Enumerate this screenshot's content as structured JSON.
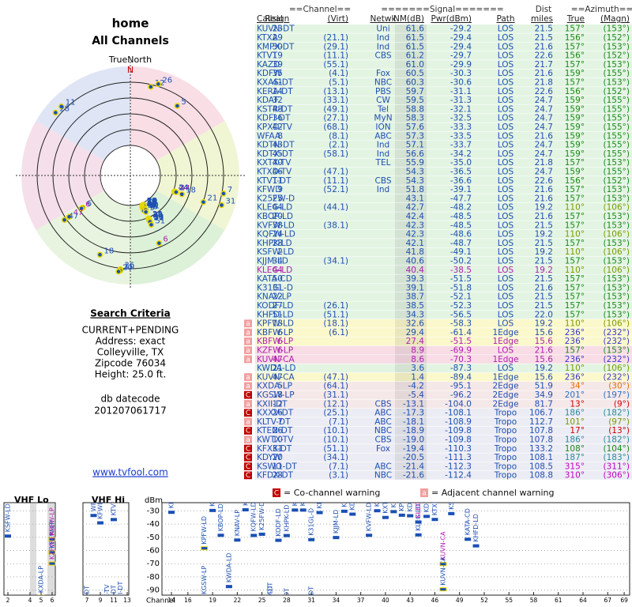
{
  "header": {
    "title": "home",
    "subtitle": "All Channels"
  },
  "polar": {
    "north_label": "TrueNorth",
    "n": "N"
  },
  "search": {
    "title": "Search Criteria",
    "lines": [
      "CURRENT+PENDING",
      "Address: exact",
      "Colleyville, TX",
      "Zipcode 76034",
      "Height: 25.0 ft."
    ],
    "datecode_label": "db datecode",
    "datecode": "201207061717",
    "link": "www.tvfool.com"
  },
  "table": {
    "group_headers": [
      "==Channel==",
      "=======Signal=======",
      "Dist",
      "==Azimuth=="
    ],
    "columns": [
      "Callsign",
      "Real",
      "(Virt)",
      "Netwk",
      "NM(dB)",
      "Pwr(dBm)",
      "Path",
      "miles",
      "True",
      "(Magn)"
    ],
    "rows": [
      {
        "cells": [
          "KUVN-DT",
          "23",
          null,
          "Uni",
          "61.6",
          "-29.2",
          "LOS",
          "21.5",
          "157°",
          "(153°)"
        ],
        "bg": "#e3f4e3",
        "color": "#1f4fb4",
        "az_color": "#1a8a1a"
      },
      {
        "cells": [
          "KTXA",
          "29",
          "(21.1)",
          "Ind",
          "61.5",
          "-29.4",
          "LOS",
          "21.5",
          "156°",
          "(152°)"
        ],
        "bg": "#e3f4e3",
        "color": "#1f4fb4",
        "az_color": "#1a8a1a"
      },
      {
        "cells": [
          "KMPX-DT",
          "30",
          "(29.1)",
          "Ind",
          "61.5",
          "-29.4",
          "LOS",
          "21.6",
          "157°",
          "(153°)"
        ],
        "bg": "#e3f4e3",
        "color": "#1f4fb4",
        "az_color": "#1a8a1a"
      },
      {
        "cells": [
          "KTVT",
          "19",
          "(11.1)",
          "CBS",
          "61.2",
          "-29.7",
          "LOS",
          "22.6",
          "156°",
          "(152°)"
        ],
        "bg": "#e3f4e3",
        "color": "#1f4fb4",
        "az_color": "#1a8a1a"
      },
      {
        "cells": [
          "KAZD",
          "39",
          "(55.1)",
          null,
          "61.0",
          "-29.9",
          "LOS",
          "21.7",
          "157°",
          "(153°)"
        ],
        "bg": "#e3f4e3",
        "color": "#1f4fb4",
        "az_color": "#1a8a1a"
      },
      {
        "cells": [
          "KDFW",
          "35",
          "(4.1)",
          "Fox",
          "60.5",
          "-30.3",
          "LOS",
          "21.6",
          "159°",
          "(155°)"
        ],
        "bg": "#e3f4e3",
        "color": "#1f4fb4",
        "az_color": "#1a8a1a"
      },
      {
        "cells": [
          "KXAS-DT",
          "41",
          "(5.1)",
          "NBC",
          "60.3",
          "-30.6",
          "LOS",
          "21.8",
          "157°",
          "(153°)"
        ],
        "bg": "#e3f4e3",
        "color": "#1f4fb4",
        "az_color": "#1a8a1a"
      },
      {
        "cells": [
          "KERA-DT",
          "14",
          "(13.1)",
          "PBS",
          "59.7",
          "-31.1",
          "LOS",
          "22.6",
          "156°",
          "(152°)"
        ],
        "bg": "#e3f4e3",
        "color": "#1f4fb4",
        "az_color": "#1a8a1a"
      },
      {
        "cells": [
          "KDAF",
          "32",
          "(33.1)",
          "CW",
          "59.5",
          "-31.3",
          "LOS",
          "24.7",
          "159°",
          "(155°)"
        ],
        "bg": "#e3f4e3",
        "color": "#1f4fb4",
        "az_color": "#1a8a1a"
      },
      {
        "cells": [
          "KSTR-DT",
          "48",
          "(49.1)",
          "Tel",
          "58.8",
          "-32.1",
          "LOS",
          "24.7",
          "159°",
          "(155°)"
        ],
        "bg": "#e3f4e3",
        "color": "#1f4fb4",
        "az_color": "#1a8a1a"
      },
      {
        "cells": [
          "KDFI-DT",
          "36",
          "(27.1)",
          "MyN",
          "58.3",
          "-32.5",
          "LOS",
          "24.7",
          "159°",
          "(155°)"
        ],
        "bg": "#e3f4e3",
        "color": "#1f4fb4",
        "az_color": "#1a8a1a"
      },
      {
        "cells": [
          "KPXD-TV",
          "42",
          "(68.1)",
          "ION",
          "57.6",
          "-33.3",
          "LOS",
          "24.7",
          "159°",
          "(155°)"
        ],
        "bg": "#e3f4e3",
        "color": "#1f4fb4",
        "az_color": "#1a8a1a"
      },
      {
        "cells": [
          "WFAA",
          "8",
          "(8.1)",
          "ABC",
          "57.3",
          "-33.5",
          "LOS",
          "21.6",
          "159°",
          "(155°)"
        ],
        "bg": "#e3f4e3",
        "color": "#1f4fb4",
        "az_color": "#1a8a1a"
      },
      {
        "cells": [
          "KDTN-DT",
          "43",
          "(2.1)",
          "Ind",
          "57.1",
          "-33.7",
          "LOS",
          "24.7",
          "159°",
          "(155°)"
        ],
        "bg": "#e3f4e3",
        "color": "#1f4fb4",
        "az_color": "#1a8a1a"
      },
      {
        "cells": [
          "KDTX-DT",
          "45",
          "(58.1)",
          "Ind",
          "56.6",
          "-34.2",
          "LOS",
          "24.7",
          "159°",
          "(155°)"
        ],
        "bg": "#e3f4e3",
        "color": "#1f4fb4",
        "az_color": "#1a8a1a"
      },
      {
        "cells": [
          "KXTX-TV",
          "40",
          null,
          "TEL",
          "55.9",
          "-35.0",
          "LOS",
          "21.8",
          "157°",
          "(153°)"
        ],
        "bg": "#e3f4e3",
        "color": "#1f4fb4",
        "az_color": "#1a8a1a"
      },
      {
        "cells": [
          "KTXD-TV",
          "46",
          "(47.1)",
          null,
          "54.3",
          "-36.5",
          "LOS",
          "24.7",
          "159°",
          "(155°)"
        ],
        "bg": "#e3f4e3",
        "color": "#1f4fb4",
        "az_color": "#1a8a1a"
      },
      {
        "cells": [
          "KTVT-DT",
          "11",
          "(11.1)",
          "CBS",
          "54.3",
          "-36.6",
          "LOS",
          "22.6",
          "156°",
          "(152°)"
        ],
        "bg": "#e3f4e3",
        "color": "#1f4fb4",
        "az_color": "#1a8a1a"
      },
      {
        "cells": [
          "KFWD",
          "9",
          "(52.1)",
          "Ind",
          "51.8",
          "-39.1",
          "LOS",
          "21.6",
          "157°",
          "(153°)"
        ],
        "bg": "#e3f4e3",
        "color": "#1f4fb4",
        "az_color": "#1a8a1a"
      },
      {
        "cells": [
          "K25FW-D",
          "25",
          null,
          null,
          "43.1",
          "-47.7",
          "LOS",
          "21.6",
          "157°",
          "(153°)"
        ],
        "bg": "#e3f4e3",
        "color": "#1f4fb4",
        "az_color": "#1a8a1a"
      },
      {
        "cells": [
          "KLEG-LD",
          "44",
          "(44.1)",
          null,
          "42.7",
          "-48.2",
          "LOS",
          "19.2",
          "110°",
          "(106°)"
        ],
        "bg": "#e3f4e3",
        "color": "#1f4fb4",
        "az_color": "#7a9a00"
      },
      {
        "cells": [
          "KBOP-LD",
          "20",
          null,
          null,
          "42.4",
          "-48.5",
          "LOS",
          "21.6",
          "157°",
          "(153°)"
        ],
        "bg": "#e3f4e3",
        "color": "#1f4fb4",
        "az_color": "#1a8a1a"
      },
      {
        "cells": [
          "KVFW-LD",
          "38",
          "(38.1)",
          null,
          "42.3",
          "-48.5",
          "LOS",
          "21.5",
          "157°",
          "(153°)"
        ],
        "bg": "#e3f4e3",
        "color": "#1f4fb4",
        "az_color": "#1a8a1a"
      },
      {
        "cells": [
          "KQFW-LD",
          "24",
          null,
          null,
          "42.3",
          "-48.6",
          "LOS",
          "19.2",
          "110°",
          "(106°)"
        ],
        "bg": "#e3f4e3",
        "color": "#1f4fb4",
        "az_color": "#7a9a00"
      },
      {
        "cells": [
          "KHPK-LD",
          "28",
          null,
          null,
          "42.1",
          "-48.7",
          "LOS",
          "21.5",
          "157°",
          "(153°)"
        ],
        "bg": "#e3f4e3",
        "color": "#1f4fb4",
        "az_color": "#1a8a1a"
      },
      {
        "cells": [
          "KSFW-LD",
          "2",
          null,
          null,
          "41.8",
          "-49.1",
          "LOS",
          "19.2",
          "110°",
          "(106°)"
        ],
        "bg": "#e3f4e3",
        "color": "#1f4fb4",
        "az_color": "#7a9a00"
      },
      {
        "cells": [
          "KJJM-LD",
          "34",
          "(34.1)",
          null,
          "40.6",
          "-50.2",
          "LOS",
          "21.5",
          "157°",
          "(153°)"
        ],
        "bg": "#e3f4e3",
        "color": "#1f4fb4",
        "az_color": "#1a8a1a"
      },
      {
        "cells": [
          "KLEG-LD",
          "44",
          null,
          null,
          "40.4",
          "-38.5",
          "LOS",
          "19.2",
          "110°",
          "(106°)"
        ],
        "bg": "#e3f4e3",
        "color": "#b01fb0",
        "az_color": "#7a9a00"
      },
      {
        "cells": [
          "KATA-CD",
          "50",
          null,
          null,
          "39.3",
          "-51.5",
          "LOS",
          "21.5",
          "157°",
          "(153°)"
        ],
        "bg": "#e3f4e3",
        "color": "#1f4fb4",
        "az_color": "#1a8a1a"
      },
      {
        "cells": [
          "K31GL-D",
          "31",
          null,
          null,
          "39.1",
          "-51.8",
          "LOS",
          "21.6",
          "157°",
          "(153°)"
        ],
        "bg": "#e3f4e3",
        "color": "#1f4fb4",
        "az_color": "#1a8a1a"
      },
      {
        "cells": [
          "KNAV-LP",
          "22",
          null,
          null,
          "38.7",
          "-52.1",
          "LOS",
          "21.5",
          "157°",
          "(153°)"
        ],
        "bg": "#e3f4e3",
        "color": "#1f4fb4",
        "az_color": "#1a8a1a"
      },
      {
        "cells": [
          "KODF-LD",
          "27",
          "(26.1)",
          null,
          "38.5",
          "-52.3",
          "LOS",
          "21.5",
          "157°",
          "(153°)"
        ],
        "bg": "#e3f4e3",
        "color": "#1f4fb4",
        "az_color": "#1a8a1a"
      },
      {
        "cells": [
          "KHFD-LD",
          "51",
          "(51.1)",
          null,
          "34.3",
          "-56.5",
          "LOS",
          "22.0",
          "157°",
          "(153°)"
        ],
        "bg": "#e3f4e3",
        "color": "#1f4fb4",
        "az_color": "#1a8a1a"
      },
      {
        "cells": [
          "KPFW-LD",
          "18",
          "(18.1)",
          null,
          "32.6",
          "-58.3",
          "LOS",
          "19.2",
          "110°",
          "(106°)"
        ],
        "bg": "#fbf8cc",
        "color": "#1f4fb4",
        "az_color": "#7a9a00",
        "warn": "a"
      },
      {
        "cells": [
          "KBFW-LP",
          "6",
          "(6.1)",
          null,
          "29.4",
          "-61.4",
          "1Edge",
          "15.6",
          "236°",
          "(232°)"
        ],
        "bg": "#fbf8cc",
        "color": "#1f4fb4",
        "az_color": "#3a3acc",
        "warn": "a"
      },
      {
        "cells": [
          "KBFW-LP",
          "6",
          null,
          null,
          "27.4",
          "-51.5",
          "1Edge",
          "15.6",
          "236°",
          "(232°)"
        ],
        "bg": "#fbf8cc",
        "color": "#b01fb0",
        "az_color": "#3a3acc",
        "warn": "a"
      },
      {
        "cells": [
          "KZFW-LP",
          "6",
          null,
          null,
          "8.9",
          "-69.9",
          "LOS",
          "21.6",
          "157°",
          "(153°)"
        ],
        "bg": "#f8dde6",
        "color": "#b01fb0",
        "az_color": "#1a8a1a",
        "warn": "a"
      },
      {
        "cells": [
          "KUVN-CA",
          "47",
          null,
          null,
          "8.6",
          "-70.3",
          "1Edge",
          "15.6",
          "236°",
          "(232°)"
        ],
        "bg": "#f8dde6",
        "color": "#b01fb0",
        "az_color": "#3a3acc",
        "warn": "a"
      },
      {
        "cells": [
          "KWDA-LD",
          "21",
          null,
          null,
          "3.6",
          "-87.3",
          "LOS",
          "19.2",
          "110°",
          "(106°)"
        ],
        "bg": "#e3f4e3",
        "color": "#1f4fb4",
        "az_color": "#7a9a00"
      },
      {
        "cells": [
          "KUVN-CA",
          "47",
          "(47.1)",
          null,
          "1.4",
          "-89.4",
          "1Edge",
          "15.6",
          "236°",
          "(232°)"
        ],
        "bg": "#fbf8cc",
        "color": "#1f4fb4",
        "az_color": "#3a3acc",
        "warn": "a"
      },
      {
        "cells": [
          "KXDA-LP",
          "5",
          "(64.1)",
          null,
          "-4.2",
          "-95.1",
          "2Edge",
          "51.9",
          "34°",
          "(30°)"
        ],
        "bg": "#f5e8e8",
        "color": "#1f4fb4",
        "az_color": "#e07000",
        "warn": "a"
      },
      {
        "cells": [
          "KGSW-LP",
          "18",
          "(31.1)",
          null,
          "-5.4",
          "-96.2",
          "2Edge",
          "34.9",
          "201°",
          "(197°)"
        ],
        "bg": "#f5e8e8",
        "color": "#1f4fb4",
        "az_color": "#3070c0",
        "warn": "C"
      },
      {
        "cells": [
          "KXII-DT",
          "12",
          "(12.1)",
          "CBS",
          "-13.1",
          "-104.0",
          "2Edge",
          "81.7",
          "13°",
          "(9°)"
        ],
        "bg": "#f5e8e8",
        "color": "#1f4fb4",
        "az_color": "#d00000",
        "warn": "a"
      },
      {
        "cells": [
          "KXXV-DT",
          "26",
          "(25.1)",
          "ABC",
          "-17.3",
          "-108.1",
          "Tropo",
          "106.7",
          "186°",
          "(182°)"
        ],
        "bg": "#ececf4",
        "color": "#1f4fb4",
        "az_color": "#2a8a9a",
        "warn": "C"
      },
      {
        "cells": [
          "KLTV-DT",
          "7",
          "(7.1)",
          "ABC",
          "-18.1",
          "-108.9",
          "Tropo",
          "112.7",
          "101°",
          "(97°)"
        ],
        "bg": "#ececf4",
        "color": "#1f4fb4",
        "az_color": "#7a9a00",
        "warn": "a"
      },
      {
        "cells": [
          "KTEN-DT",
          "26",
          "(10.1)",
          "NBC",
          "-18.9",
          "-109.8",
          "Tropo",
          "107.8",
          "17°",
          "(13°)"
        ],
        "bg": "#ececf4",
        "color": "#1f4fb4",
        "az_color": "#d00000",
        "warn": "C"
      },
      {
        "cells": [
          "KWTX-TV",
          "10",
          "(10.1)",
          "CBS",
          "-19.0",
          "-109.8",
          "Tropo",
          "107.8",
          "186°",
          "(182°)"
        ],
        "bg": "#ececf4",
        "color": "#1f4fb4",
        "az_color": "#2a8a9a",
        "warn": "a"
      },
      {
        "cells": [
          "KFXK-DT",
          "31",
          "(51.1)",
          "Fox",
          "-19.4",
          "-110.3",
          "Tropo",
          "133.2",
          "108°",
          "(104°)"
        ],
        "bg": "#ececf4",
        "color": "#1f4fb4",
        "az_color": "#1a8a1a",
        "warn": "C"
      },
      {
        "cells": [
          "KDYW",
          "20",
          "(34.1)",
          null,
          "-20.5",
          "-111.3",
          "Tropo",
          "108.1",
          "187°",
          "(183°)"
        ],
        "bg": "#ececf4",
        "color": "#1f4fb4",
        "az_color": "#2a8a9a",
        "warn": "C"
      },
      {
        "cells": [
          "KSWO-DT",
          "11",
          "(7.1)",
          "ABC",
          "-21.4",
          "-112.3",
          "Tropo",
          "108.5",
          "315°",
          "(311°)"
        ],
        "bg": "#ececf4",
        "color": "#1f4fb4",
        "az_color": "#c000c0",
        "warn": "C"
      },
      {
        "cells": [
          "KFDX-DT",
          "28",
          "(3.1)",
          "NBC",
          "-21.6",
          "-112.4",
          "Tropo",
          "108.8",
          "310°",
          "(306°)"
        ],
        "bg": "#ececf4",
        "color": "#1f4fb4",
        "az_color": "#c000c0",
        "warn": "C"
      }
    ]
  },
  "spectrum": {
    "legend": [
      {
        "mark": "C",
        "text": "= Co-channel warning",
        "color": "#c00000"
      },
      {
        "mark": "a",
        "text": "= Adjacent channel warning",
        "color": "#f0a0a0"
      }
    ],
    "sections": [
      "VHF Lo",
      "VHF Hi"
    ],
    "y_label": "dBm",
    "x_label": "Channel",
    "ylim": [
      -25,
      -95
    ],
    "yticks": [
      -30,
      -40,
      -50,
      -60,
      -70,
      -80,
      -90
    ],
    "xticks": [
      2,
      4,
      5,
      6,
      7,
      9,
      11,
      13,
      14,
      16,
      19,
      22,
      25,
      28,
      31,
      34,
      37,
      40,
      43,
      46,
      49,
      52,
      55,
      58,
      61,
      64,
      67,
      69
    ]
  }
}
